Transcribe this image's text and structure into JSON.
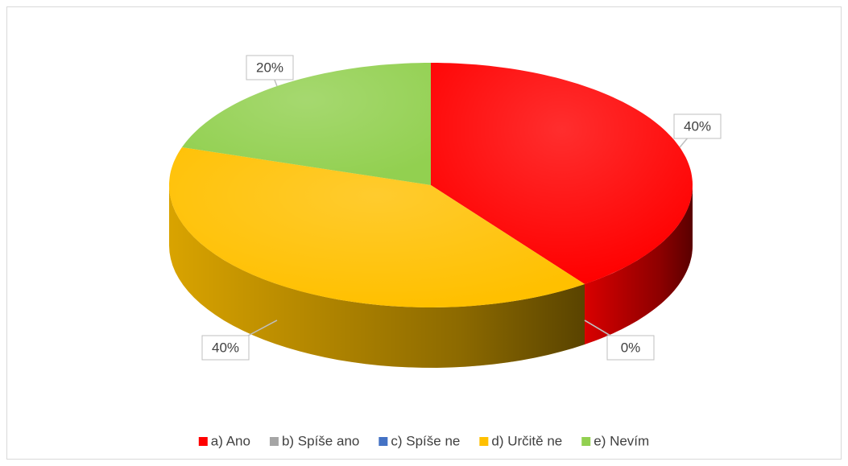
{
  "chart_data": {
    "type": "pie",
    "categories": [
      "a) Ano",
      "b) Spíše ano",
      "c) Spíše ne",
      "d) Určitě ne",
      "e) Nevím"
    ],
    "values": [
      40,
      0,
      0,
      40,
      20
    ],
    "value_labels": [
      "40%",
      "0%",
      "0%",
      "40%",
      "20%"
    ],
    "colors": [
      "#ff0000",
      "#a5a5a5",
      "#4472c4",
      "#ffc000",
      "#92d050"
    ],
    "legend": "bottom"
  }
}
